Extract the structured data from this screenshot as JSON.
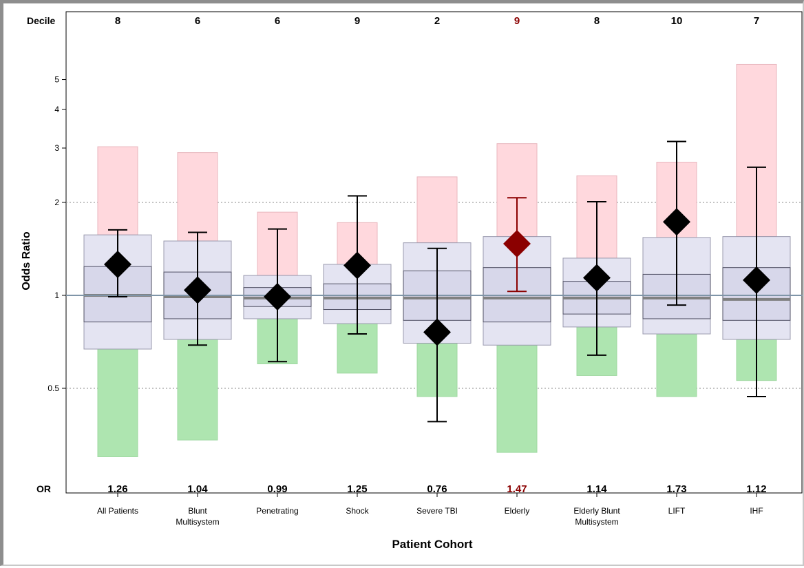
{
  "chart_data": {
    "type": "forest",
    "xlabel": "Patient Cohort",
    "ylabel": "Odds Ratio",
    "yscale": "log",
    "ylim": [
      0.27,
      7.5
    ],
    "yticks": [
      0.5,
      1,
      2,
      3,
      4,
      5
    ],
    "ytick_labels": [
      "0.5",
      "1",
      "2",
      "3",
      "4",
      "5"
    ],
    "reference_line": 1,
    "dotted_lines": [
      0.5,
      2
    ],
    "top_row_label": "Decile",
    "bottom_row_label": "OR",
    "highlight_color": "#8b0000",
    "colors": {
      "high_range": "#ffd8dd",
      "low_range": "#aee5b0",
      "outer_box": "#e4e4f2",
      "inner_box": "#d7d7ea",
      "median": "#808080",
      "marker": "#000000",
      "reference": "#7f95a8"
    },
    "cohorts": [
      {
        "label": [
          "All Patients"
        ],
        "decile": "8",
        "or_label": "1.26",
        "or": 1.26,
        "ci": [
          0.99,
          1.63
        ],
        "red_top": 3.03,
        "box_outer": [
          0.67,
          1.57
        ],
        "box_inner": [
          0.82,
          1.24
        ],
        "median": 1.0,
        "green_bottom": 0.3,
        "highlight": false
      },
      {
        "label": [
          "Blunt",
          "Multisystem"
        ],
        "decile": "6",
        "or_label": "1.04",
        "or": 1.04,
        "ci": [
          0.69,
          1.6
        ],
        "red_top": 2.9,
        "box_outer": [
          0.72,
          1.5
        ],
        "box_inner": [
          0.84,
          1.19
        ],
        "median": 0.99,
        "green_bottom": 0.34,
        "highlight": false
      },
      {
        "label": [
          "Penetrating"
        ],
        "decile": "6",
        "or_label": "0.99",
        "or": 0.99,
        "ci": [
          0.61,
          1.64
        ],
        "red_top": 1.86,
        "box_outer": [
          0.84,
          1.16
        ],
        "box_inner": [
          0.92,
          1.06
        ],
        "median": 0.98,
        "green_bottom": 0.6,
        "highlight": false
      },
      {
        "label": [
          "Shock"
        ],
        "decile": "9",
        "or_label": "1.25",
        "or": 1.25,
        "ci": [
          0.75,
          2.1
        ],
        "red_top": 1.72,
        "box_outer": [
          0.81,
          1.26
        ],
        "box_inner": [
          0.9,
          1.09
        ],
        "median": 0.98,
        "green_bottom": 0.56,
        "highlight": false
      },
      {
        "label": [
          "Severe TBI"
        ],
        "decile": "2",
        "or_label": "0.76",
        "or": 0.76,
        "ci": [
          0.39,
          1.42
        ],
        "red_top": 2.42,
        "box_outer": [
          0.7,
          1.48
        ],
        "box_inner": [
          0.83,
          1.2
        ],
        "median": 0.98,
        "green_bottom": 0.47,
        "highlight": false
      },
      {
        "label": [
          "Elderly"
        ],
        "decile": "9",
        "or_label": "1.47",
        "or": 1.47,
        "ci": [
          1.03,
          2.07
        ],
        "red_top": 3.1,
        "box_outer": [
          0.69,
          1.55
        ],
        "box_inner": [
          0.82,
          1.23
        ],
        "median": 0.98,
        "green_bottom": 0.31,
        "highlight": true
      },
      {
        "label": [
          "Elderly Blunt",
          "Multisystem"
        ],
        "decile": "8",
        "or_label": "1.14",
        "or": 1.14,
        "ci": [
          0.64,
          2.01
        ],
        "red_top": 2.44,
        "box_outer": [
          0.79,
          1.32
        ],
        "box_inner": [
          0.87,
          1.11
        ],
        "median": 0.98,
        "green_bottom": 0.55,
        "highlight": false
      },
      {
        "label": [
          "LIFT"
        ],
        "decile": "10",
        "or_label": "1.73",
        "or": 1.73,
        "ci": [
          0.93,
          3.15
        ],
        "red_top": 2.7,
        "box_outer": [
          0.75,
          1.54
        ],
        "box_inner": [
          0.84,
          1.17
        ],
        "median": 0.98,
        "green_bottom": 0.47,
        "highlight": false
      },
      {
        "label": [
          "IHF"
        ],
        "decile": "7",
        "or_label": "1.12",
        "or": 1.12,
        "ci": [
          0.47,
          2.6
        ],
        "red_top": 5.6,
        "box_outer": [
          0.72,
          1.55
        ],
        "box_inner": [
          0.83,
          1.23
        ],
        "median": 0.97,
        "green_bottom": 0.53,
        "highlight": false
      }
    ]
  }
}
